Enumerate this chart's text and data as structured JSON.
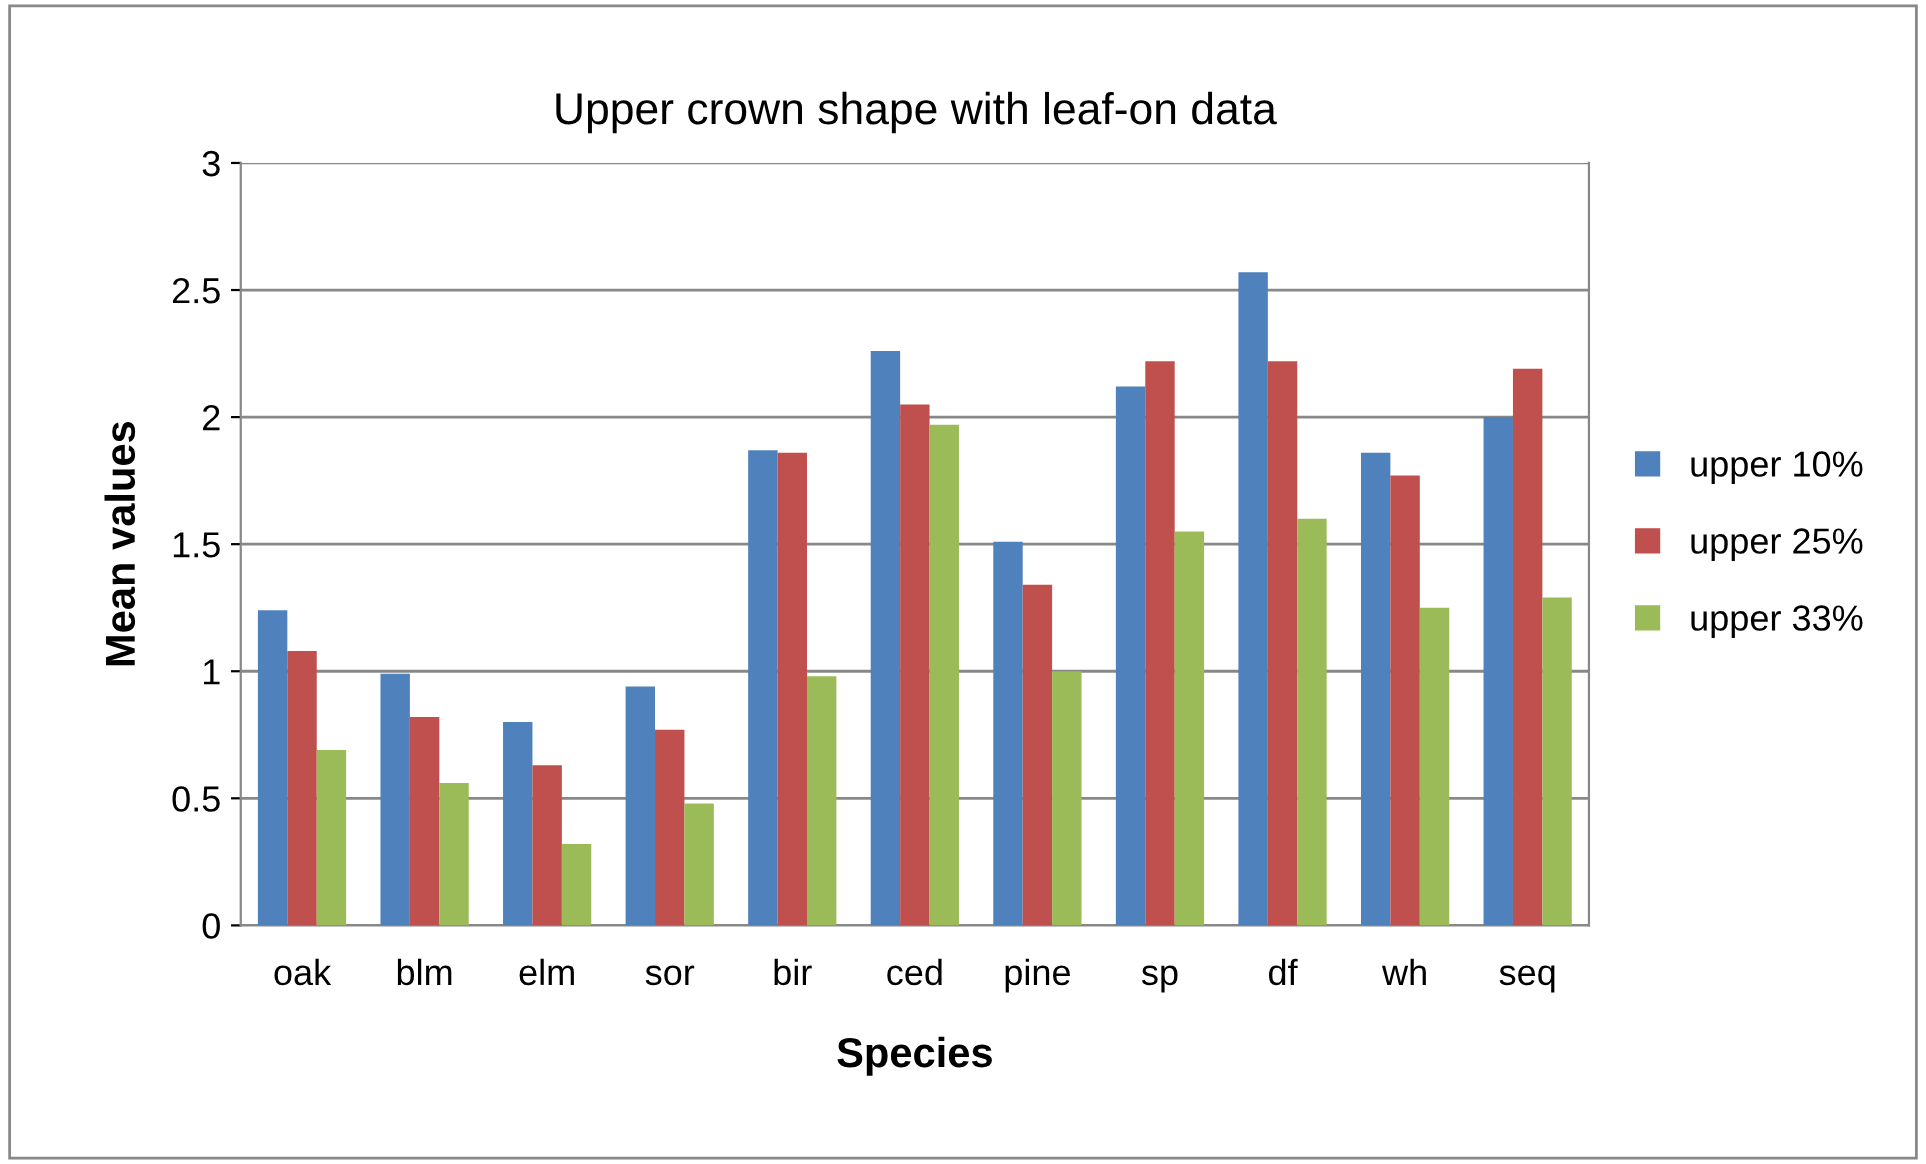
{
  "chart_data": {
    "type": "bar",
    "title": "Upper crown shape with leaf-on data",
    "xlabel": "Species",
    "ylabel": "Mean values",
    "categories": [
      "oak",
      "blm",
      "elm",
      "sor",
      "bir",
      "ced",
      "pine",
      "sp",
      "df",
      "wh",
      "seq"
    ],
    "series": [
      {
        "name": "upper 10%",
        "color": "#4f81bd",
        "values": [
          1.24,
          0.99,
          0.8,
          0.94,
          1.87,
          2.26,
          1.51,
          2.12,
          2.57,
          1.86,
          2.0
        ]
      },
      {
        "name": "upper 25%",
        "color": "#c0504d",
        "values": [
          1.08,
          0.82,
          0.63,
          0.77,
          1.86,
          2.05,
          1.34,
          2.22,
          2.22,
          1.77,
          2.19
        ]
      },
      {
        "name": "upper 33%",
        "color": "#9bbb59",
        "values": [
          0.69,
          0.56,
          0.32,
          0.48,
          0.98,
          1.97,
          1.0,
          1.55,
          1.6,
          1.25,
          1.29
        ]
      }
    ],
    "ylim": [
      0,
      3
    ],
    "yticks": [
      0,
      0.5,
      1,
      1.5,
      2,
      2.5,
      3
    ],
    "grid": "y",
    "legend": "right"
  }
}
